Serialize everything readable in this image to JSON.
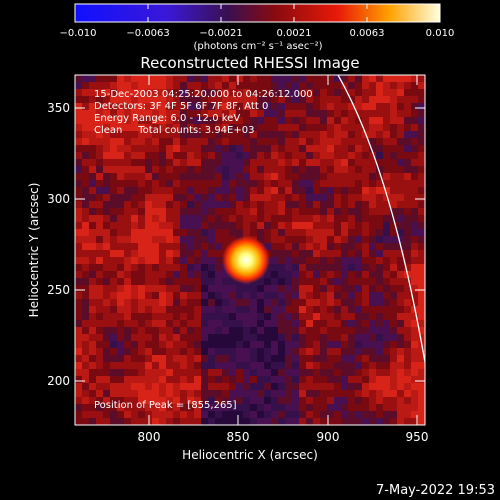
{
  "colorbar": {
    "tick_labels": [
      "−0.010",
      "−0.0063",
      "−0.0021",
      "0.0021",
      "0.0063",
      "0.010"
    ],
    "units": "(photons cm⁻² s⁻¹ asec⁻²)"
  },
  "plot": {
    "title": "Reconstructed RHESSI Image",
    "info_time": "15-Dec-2003 04:25:20.000 to 04:26:12.000",
    "info_detectors": "Detectors: 3F 4F 5F 6F 7F 8F, Att 0",
    "info_energy": "Energy Range: 6.0 - 12.0 keV",
    "info_clean": "Clean     Total counts: 3.94E+03",
    "peak_label": "Position of Peak = [855,265]",
    "x_axis_label": "Heliocentric X (arcsec)",
    "y_axis_label": "Heliocentric Y (arcsec)",
    "x_ticks": [
      "800",
      "850",
      "900",
      "950"
    ],
    "y_ticks": [
      "350",
      "300",
      "250",
      "200"
    ]
  },
  "footer": {
    "timestamp": "7-May-2022 19:53"
  }
}
